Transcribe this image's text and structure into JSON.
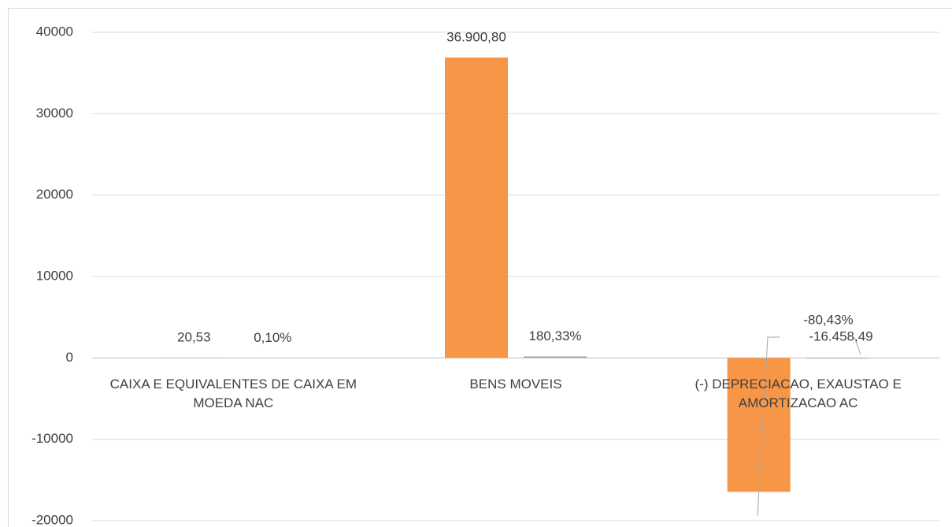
{
  "chart_data": {
    "type": "bar",
    "categories": [
      "CAIXA E EQUIVALENTES DE CAIXA EM MOEDA NAC",
      "BENS MOVEIS",
      "(-) DEPRECIACAO, EXAUSTAO E AMORTIZACAO AC"
    ],
    "series": [
      {
        "color": "#f79646",
        "values": [
          20.53,
          36900.8,
          -16458.49
        ],
        "value_labels": [
          "20,53",
          "36.900,80",
          "-16.458,49"
        ]
      },
      {
        "color": "#a5a5a5",
        "values": [
          0.1,
          180.33,
          -80.43
        ],
        "value_labels": [
          "0,10%",
          "180,33%",
          "-80,43%"
        ]
      }
    ],
    "ylim": [
      -20000,
      40000
    ],
    "yticks": [
      -20000,
      -10000,
      0,
      10000,
      20000,
      30000,
      40000
    ],
    "grid": true
  }
}
